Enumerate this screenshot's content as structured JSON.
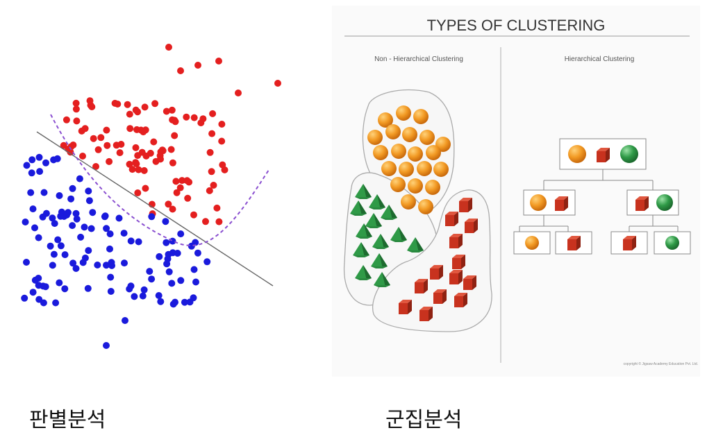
{
  "captions": {
    "left": "판별분석",
    "right": "군집분석"
  },
  "scatter": {
    "red_color": "#e41f1f",
    "blue_color": "#1a1adc",
    "line_color": "#666666",
    "curve_color": "#8a4fd0"
  },
  "clustering": {
    "title": "TYPES OF CLUSTERING",
    "left_heading": "Non - Hierarchical Clustering",
    "right_heading": "Hierarchical Clustering",
    "copyright": "copyright © Jigsaw Academy Education Pvt. Ltd.",
    "colors": {
      "orange": "#f0921e",
      "red": "#c8321e",
      "green": "#2e9a46"
    }
  }
}
